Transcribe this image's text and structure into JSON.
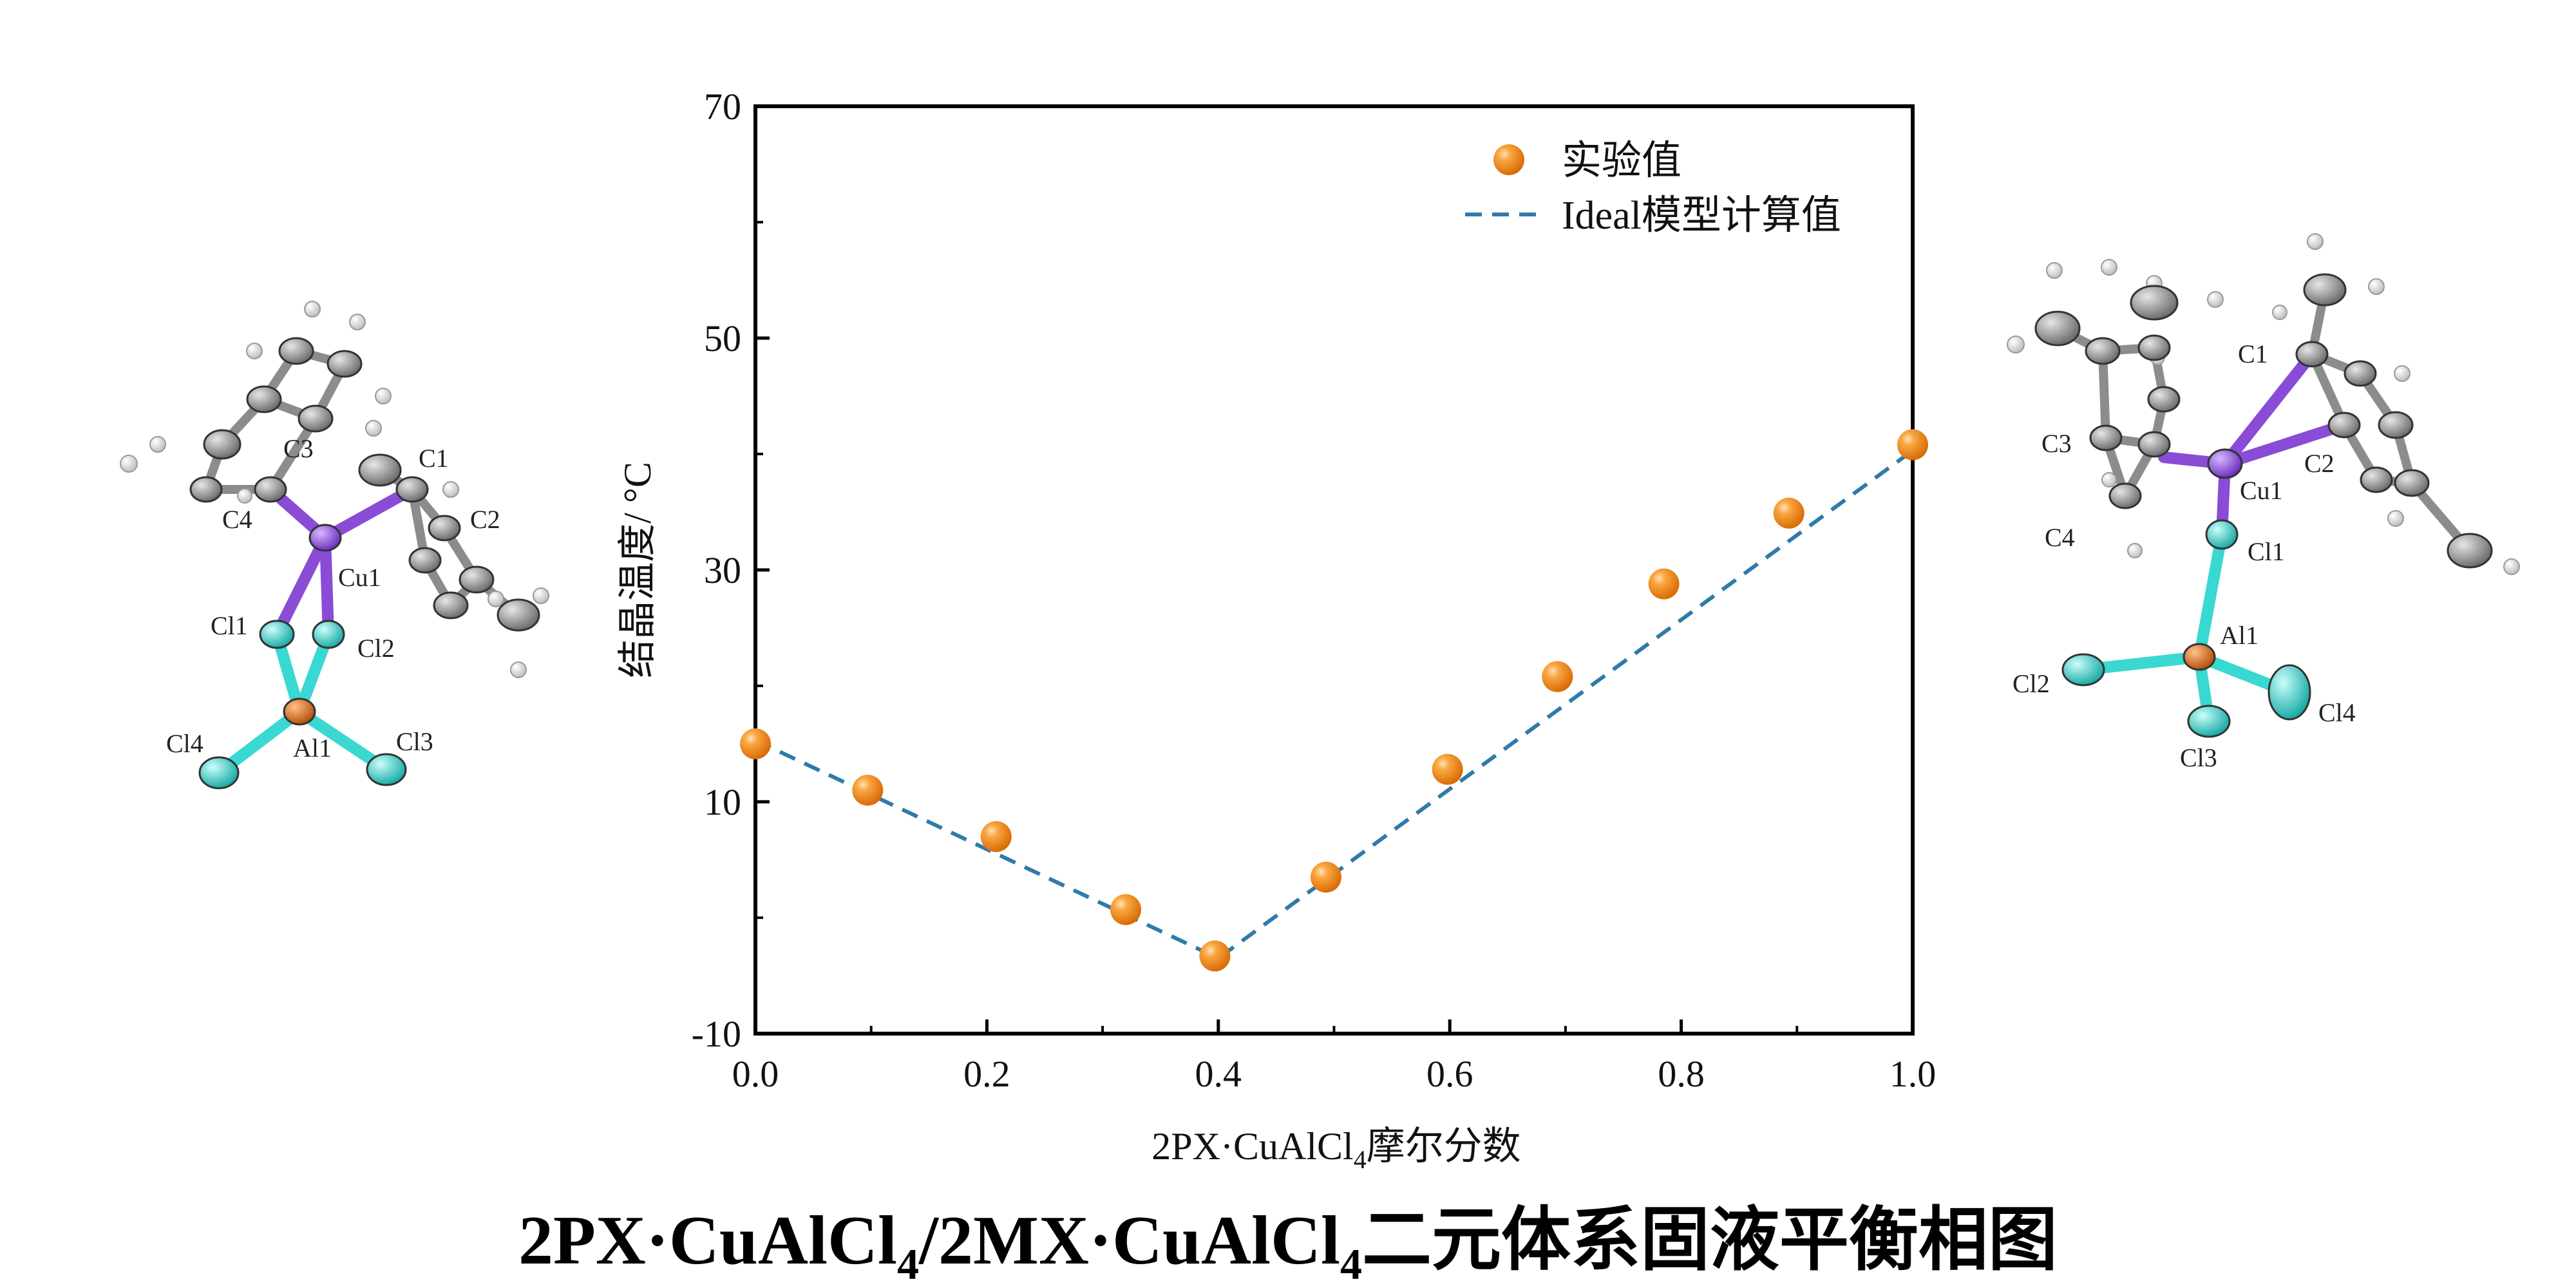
{
  "chart_data": {
    "type": "scatter",
    "xlabel": "2PX·CuAlCl",
    "xlabel_sub": "4",
    "xlabel_suffix": "摩尔分数",
    "ylabel": "结晶温度/ °C",
    "xlim": [
      0.0,
      1.0
    ],
    "ylim": [
      -10,
      70
    ],
    "x_ticks": [
      "0.0",
      "0.2",
      "0.4",
      "0.6",
      "0.8",
      "1.0"
    ],
    "y_ticks": [
      "-10",
      "10",
      "30",
      "50",
      "70"
    ],
    "series": [
      {
        "name": "实验值",
        "kind": "points",
        "color": "#F28C1E",
        "points": [
          [
            0.0,
            15.0
          ],
          [
            0.097,
            11.0
          ],
          [
            0.208,
            7.0
          ],
          [
            0.32,
            0.7
          ],
          [
            0.397,
            -3.3
          ],
          [
            0.493,
            3.5
          ],
          [
            0.598,
            12.8
          ],
          [
            0.693,
            20.8
          ],
          [
            0.785,
            28.8
          ],
          [
            0.893,
            34.9
          ],
          [
            1.0,
            40.8
          ]
        ]
      },
      {
        "name": "Ideal模型计算值",
        "kind": "dashed-line",
        "color": "#2F7BA8",
        "points": [
          [
            0.0,
            15.3
          ],
          [
            0.4,
            -3.5
          ],
          [
            1.0,
            40.3
          ]
        ]
      }
    ]
  },
  "caption": {
    "part1": "2PX·CuAlCl",
    "sub1": "4",
    "part2": "/2MX·CuAlCl",
    "sub2": "4",
    "part3": "二元体系固液平衡相图"
  },
  "left_molecule": {
    "labels": {
      "c3": "C3",
      "c1": "C1",
      "c4": "C4",
      "c2": "C2",
      "cu1": "Cu1",
      "cl1": "Cl1",
      "cl2": "Cl2",
      "cl4": "Cl4",
      "al1": "Al1",
      "cl3": "Cl3"
    }
  },
  "right_molecule": {
    "labels": {
      "c1": "C1",
      "c3": "C3",
      "c2": "C2",
      "c4": "C4",
      "cu1": "Cu1",
      "cl1": "Cl1",
      "al1": "Al1",
      "cl2": "Cl2",
      "cl4": "Cl4",
      "cl3": "Cl3"
    }
  },
  "colors": {
    "copper": "#8A4BD6",
    "chlorine": "#39D8D2",
    "aluminum": "#E86A12",
    "carbon": "#8C8C8C",
    "hydrogen": "#F4F4F4"
  }
}
